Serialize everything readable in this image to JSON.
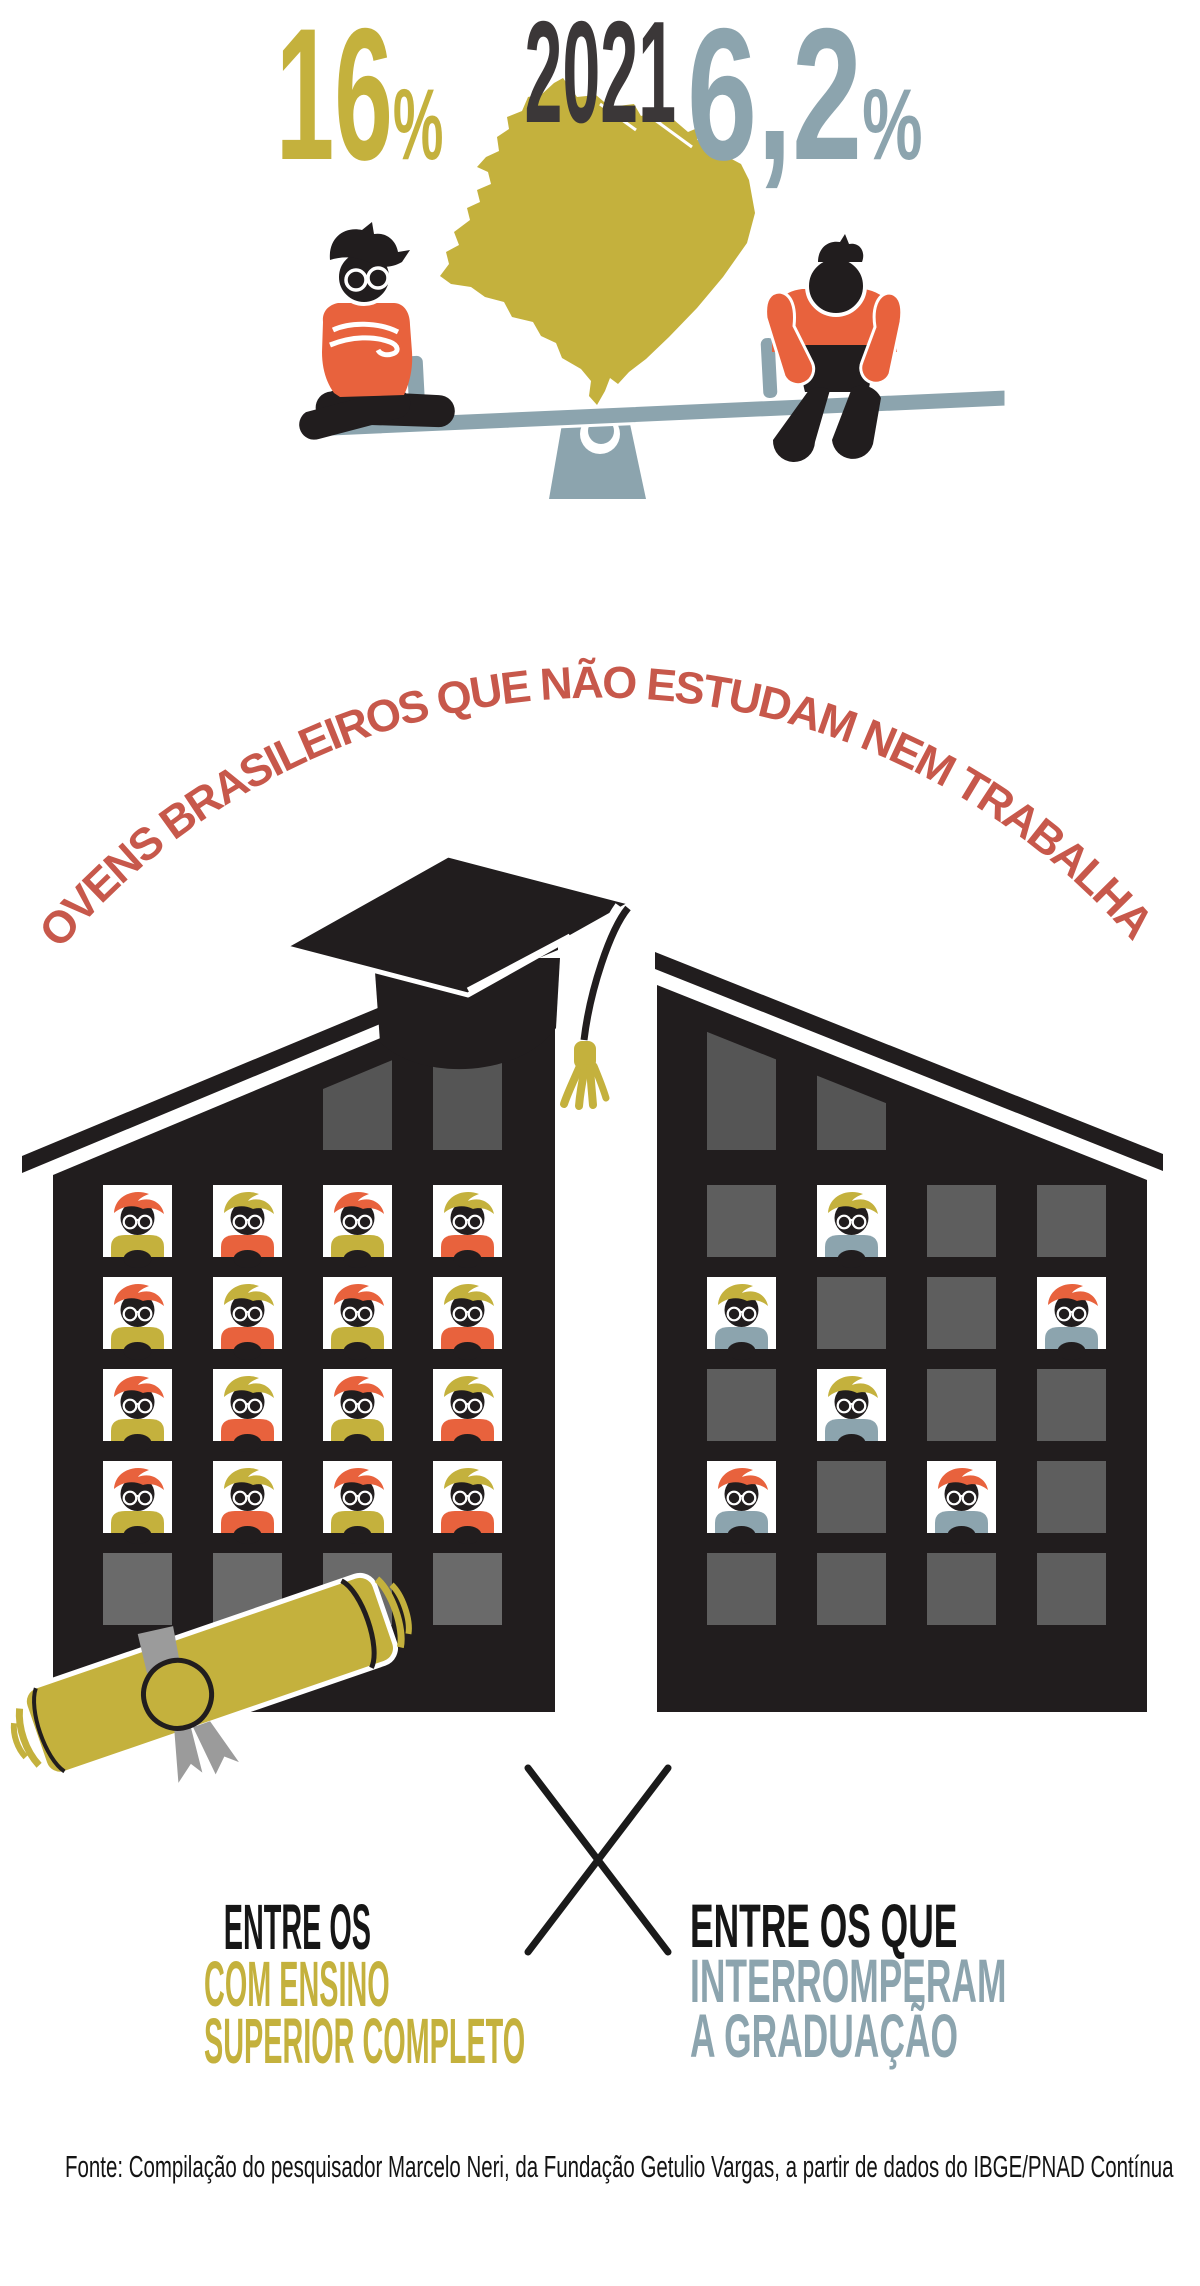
{
  "year": "2021",
  "arc_title": "JOVENS BRASILEIROS QUE NÃO ESTUDAM NEM TRABALHAM",
  "source": "Fonte: Compilação do pesquisador Marcelo Neri, da Fundação Getulio Vargas, a partir de dados do IBGE/PNAD Contínua",
  "stats": {
    "left": {
      "value": "16",
      "percent_sign": "%",
      "lines": [
        {
          "text": "ENTRE OS",
          "color": "black"
        },
        {
          "text": "COM ENSINO",
          "color": "gold"
        },
        {
          "text": "SUPERIOR COMPLETO",
          "color": "gold"
        }
      ]
    },
    "right": {
      "value": "6,2",
      "percent_sign": "%",
      "lines": [
        {
          "text": "ENTRE OS QUE",
          "color": "black"
        },
        {
          "text": "INTERROMPERAM",
          "color": "blue"
        },
        {
          "text": "A GRADUAÇÃO",
          "color": "blue"
        }
      ]
    }
  },
  "chart_data": {
    "type": "bar",
    "variant": "pictogram-comparison",
    "title": "Jovens brasileiros que não estudam nem trabalham",
    "year": "2021",
    "categories": [
      "Entre os com ensino superior completo",
      "Entre os que interromperam a graduação"
    ],
    "values": [
      16,
      6.2
    ],
    "value_labels": [
      "16%",
      "6,2%"
    ],
    "pictogram_counts": {
      "left_building_occupied_windows": 16,
      "right_building_occupied_windows": 6
    },
    "source": "Fonte: Compilação do pesquisador Marcelo Neri, da Fundação Getulio Vargas, a partir de dados do IBGE/PNAD Contínua"
  },
  "buildings": {
    "left": {
      "name": "predio-ensino-superior-completo",
      "windows": [
        [
          "none",
          "none",
          "angled",
          "angled"
        ],
        [
          "face-red-gold",
          "face-gold-red",
          "face-red-gold",
          "face-gold-red"
        ],
        [
          "face-red-gold",
          "face-gold-red",
          "face-red-gold",
          "face-gold-red"
        ],
        [
          "face-red-gold",
          "face-gold-red",
          "face-red-gold",
          "face-gold-red"
        ],
        [
          "face-red-gold",
          "face-gold-red",
          "face-red-gold",
          "face-gold-red"
        ],
        [
          "gray",
          "gray",
          "gray",
          "gray"
        ]
      ]
    },
    "right": {
      "name": "predio-graduacao-interrompida",
      "windows": [
        [
          "angled",
          "angled",
          "none",
          "none"
        ],
        [
          "gray",
          "face-gold-blue",
          "gray",
          "gray"
        ],
        [
          "face-gold-blue",
          "gray",
          "gray",
          "face-red-blue"
        ],
        [
          "gray",
          "face-gold-blue",
          "gray",
          "gray"
        ],
        [
          "face-red-blue",
          "gray",
          "face-red-blue",
          "gray"
        ],
        [
          "gray",
          "gray",
          "gray",
          "gray"
        ]
      ]
    }
  },
  "colors": {
    "gold": "#C4B13D",
    "orange": "#E8623D",
    "red": "#C7584B",
    "blue_gray": "#8CA4AE",
    "ink": "#211D1E",
    "year_gray": "#3B3738",
    "window_gray_left": "#6A6A6A",
    "window_gray_right": "#5E5E5E",
    "window_dark": "#555555",
    "ribbon_gray": "#9B9B9B"
  }
}
